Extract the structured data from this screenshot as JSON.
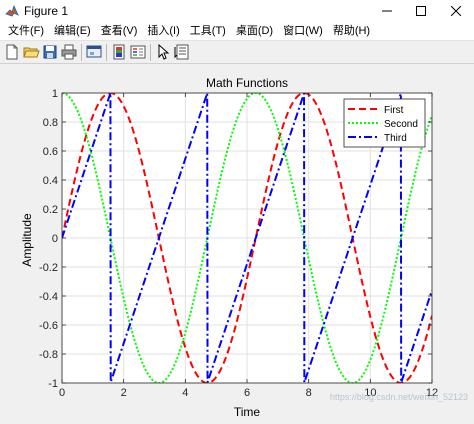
{
  "window": {
    "title": "Figure 1",
    "minimize_glyph": "minimize-icon",
    "maximize_glyph": "maximize-icon",
    "close_glyph": "close-icon"
  },
  "menubar": {
    "items": [
      {
        "id": "file",
        "label": "文件(F)"
      },
      {
        "id": "edit",
        "label": "编辑(E)"
      },
      {
        "id": "view",
        "label": "查看(V)"
      },
      {
        "id": "insert",
        "label": "插入(I)"
      },
      {
        "id": "tools",
        "label": "工具(T)"
      },
      {
        "id": "desktop",
        "label": "桌面(D)"
      },
      {
        "id": "window",
        "label": "窗口(W)"
      },
      {
        "id": "help",
        "label": "帮助(H)"
      }
    ]
  },
  "toolbar": {
    "buttons": [
      "new-figure-icon",
      "open-file-icon",
      "save-icon",
      "print-icon",
      "link-plot-icon",
      "colorbar-icon",
      "legend-icon",
      "edit-plot-arrow-icon",
      "property-inspector-icon"
    ]
  },
  "colors": {
    "first": "#ff0000",
    "second": "#00ff00",
    "third": "#0000ff",
    "grid": "#e1e1e1",
    "figure_bg": "#f0f0f0"
  },
  "watermark": "https://blog.csdn.net/weixin_52123",
  "chart_data": {
    "type": "line",
    "title": "Math Functions",
    "xlabel": "Time",
    "ylabel": "Amplitude",
    "xlim": [
      0,
      12
    ],
    "ylim": [
      -1,
      1
    ],
    "xticks": [
      0,
      2,
      4,
      6,
      8,
      10,
      12
    ],
    "yticks": [
      -1,
      -0.8,
      -0.6,
      -0.4,
      -0.2,
      0,
      0.2,
      0.4,
      0.6,
      0.8,
      1
    ],
    "grid": true,
    "legend_position": "top-right",
    "x": [
      0,
      0.5,
      1,
      1.5,
      2,
      2.5,
      3,
      3.5,
      4,
      4.5,
      5,
      5.5,
      6,
      6.5,
      7,
      7.5,
      8,
      8.5,
      9,
      9.5,
      10,
      10.5,
      11,
      11.5,
      12
    ],
    "series": [
      {
        "name": "First",
        "style": "dashed",
        "values": [
          0,
          0.48,
          0.84,
          1.0,
          0.91,
          0.6,
          0.14,
          -0.35,
          -0.76,
          -0.98,
          -0.96,
          -0.71,
          -0.28,
          0.22,
          0.66,
          0.94,
          0.99,
          0.8,
          0.41,
          -0.08,
          -0.54,
          -0.88,
          -1.0,
          -0.87,
          -0.54
        ]
      },
      {
        "name": "Second",
        "style": "dotted",
        "values": [
          1.0,
          0.88,
          0.54,
          0.07,
          -0.42,
          -0.8,
          -0.99,
          -0.94,
          -0.65,
          -0.21,
          0.28,
          0.71,
          0.96,
          0.98,
          0.75,
          0.35,
          -0.15,
          -0.6,
          -0.91,
          -1.0,
          -0.84,
          -0.48,
          0.0,
          0.48,
          0.84
        ]
      },
      {
        "name": "Third",
        "style": "dashdot",
        "values": [
          0,
          0.55,
          1.0,
          -1.0,
          -0.5,
          -0.25,
          -0.14,
          0.37,
          1.0,
          -1.0,
          -1.0,
          -0.71,
          -0.29,
          0.22,
          0.87,
          -1.0,
          -1.0,
          -0.76,
          -0.45,
          -0.08,
          0.65,
          -1.0,
          -1.0,
          -0.87,
          -0.64
        ]
      }
    ]
  }
}
